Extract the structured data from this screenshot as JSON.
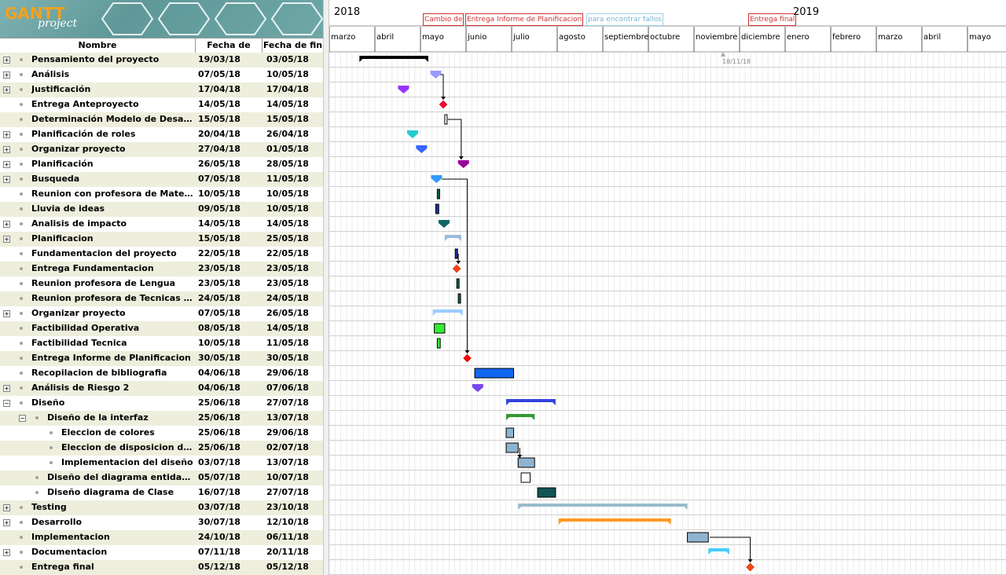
{
  "logo": {
    "brand": "GANTT",
    "sub": "project"
  },
  "columns": {
    "name": "Nombre",
    "start": "Fecha de inicio",
    "end": "Fecha de fin"
  },
  "timeline": {
    "year_left": "2018",
    "year_right": "2019",
    "months": [
      "marzo",
      "abril",
      "mayo",
      "junio",
      "julio",
      "agosto",
      "septiembre",
      "octubre",
      "noviembre",
      "diciembre",
      "enero",
      "febrero",
      "marzo",
      "abril",
      "mayo"
    ],
    "headlines": [
      {
        "text": "Cambio de",
        "style": "red"
      },
      {
        "text": "Entrega Informe de Planificacion",
        "style": "red"
      },
      {
        "text": "para encontrar fallos",
        "style": "blue"
      },
      {
        "text": "Entrega final",
        "style": "red"
      }
    ],
    "cursor_label": "18/11/18"
  },
  "tasks": [
    {
      "name": "Pensamiento del proyecto",
      "start": "19/03/18",
      "end": "03/05/18",
      "level": 0,
      "expand": "+"
    },
    {
      "name": "Análisis",
      "start": "07/05/18",
      "end": "10/05/18",
      "level": 0,
      "expand": "+"
    },
    {
      "name": "Justificación",
      "start": "17/04/18",
      "end": "17/04/18",
      "level": 0,
      "expand": "+"
    },
    {
      "name": "Entrega Anteproyecto",
      "start": "14/05/18",
      "end": "14/05/18",
      "level": 0,
      "expand": ""
    },
    {
      "name": "Determinación Modelo de Desarrollo",
      "start": "15/05/18",
      "end": "15/05/18",
      "level": 0,
      "expand": ""
    },
    {
      "name": "Planificación de roles",
      "start": "20/04/18",
      "end": "26/04/18",
      "level": 0,
      "expand": "+"
    },
    {
      "name": "Organizar proyecto",
      "start": "27/04/18",
      "end": "01/05/18",
      "level": 0,
      "expand": "+"
    },
    {
      "name": "Planificación",
      "start": "26/05/18",
      "end": "28/05/18",
      "level": 0,
      "expand": "+"
    },
    {
      "name": "Busqueda",
      "start": "07/05/18",
      "end": "11/05/18",
      "level": 0,
      "expand": "+"
    },
    {
      "name": "Reunion con profesora de Matemática",
      "start": "10/05/18",
      "end": "10/05/18",
      "level": 0,
      "expand": ""
    },
    {
      "name": "Lluvia de ideas",
      "start": "09/05/18",
      "end": "10/05/18",
      "level": 0,
      "expand": ""
    },
    {
      "name": "Analisis de impacto",
      "start": "14/05/18",
      "end": "14/05/18",
      "level": 0,
      "expand": "+"
    },
    {
      "name": "Planificacion",
      "start": "15/05/18",
      "end": "25/05/18",
      "level": 0,
      "expand": "+"
    },
    {
      "name": "Fundamentacion del proyecto",
      "start": "22/05/18",
      "end": "22/05/18",
      "level": 0,
      "expand": ""
    },
    {
      "name": "Entrega Fundamentacion",
      "start": "23/05/18",
      "end": "23/05/18",
      "level": 0,
      "expand": ""
    },
    {
      "name": "Reunion profesora de Lengua",
      "start": "23/05/18",
      "end": "23/05/18",
      "level": 0,
      "expand": ""
    },
    {
      "name": "Reunion profesora de Tecnicas de Est...",
      "start": "24/05/18",
      "end": "24/05/18",
      "level": 0,
      "expand": ""
    },
    {
      "name": "Organizar proyecto",
      "start": "07/05/18",
      "end": "26/05/18",
      "level": 0,
      "expand": "+"
    },
    {
      "name": "Factibilidad Operativa",
      "start": "08/05/18",
      "end": "14/05/18",
      "level": 0,
      "expand": ""
    },
    {
      "name": "Factibilidad Tecnica",
      "start": "10/05/18",
      "end": "11/05/18",
      "level": 0,
      "expand": ""
    },
    {
      "name": "Entrega Informe de Planificacion",
      "start": "30/05/18",
      "end": "30/05/18",
      "level": 0,
      "expand": ""
    },
    {
      "name": "Recopilacion de bibliografia",
      "start": "04/06/18",
      "end": "29/06/18",
      "level": 0,
      "expand": ""
    },
    {
      "name": "Análisis de Riesgo 2",
      "start": "04/06/18",
      "end": "07/06/18",
      "level": 0,
      "expand": "+"
    },
    {
      "name": "Diseño",
      "start": "25/06/18",
      "end": "27/07/18",
      "level": 0,
      "expand": "−"
    },
    {
      "name": "Diseño de la interfaz",
      "start": "25/06/18",
      "end": "13/07/18",
      "level": 1,
      "expand": "−"
    },
    {
      "name": "Eleccion de colores",
      "start": "25/06/18",
      "end": "29/06/18",
      "level": 2,
      "expand": ""
    },
    {
      "name": "Eleccion de disposicion de los ...",
      "start": "25/06/18",
      "end": "02/07/18",
      "level": 2,
      "expand": ""
    },
    {
      "name": "Implementacion del diseño",
      "start": "03/07/18",
      "end": "13/07/18",
      "level": 2,
      "expand": ""
    },
    {
      "name": "Diseño del diagrama entidad-relac...",
      "start": "05/07/18",
      "end": "10/07/18",
      "level": 1,
      "expand": ""
    },
    {
      "name": "Diseño diagrama de Clase",
      "start": "16/07/18",
      "end": "27/07/18",
      "level": 1,
      "expand": ""
    },
    {
      "name": "Testing",
      "start": "03/07/18",
      "end": "23/10/18",
      "level": 0,
      "expand": "+"
    },
    {
      "name": "Desarrollo",
      "start": "30/07/18",
      "end": "12/10/18",
      "level": 0,
      "expand": "+"
    },
    {
      "name": "Implementacion",
      "start": "24/10/18",
      "end": "06/11/18",
      "level": 0,
      "expand": ""
    },
    {
      "name": "Documentacion",
      "start": "07/11/18",
      "end": "20/11/18",
      "level": 0,
      "expand": "+"
    },
    {
      "name": "Entrega final",
      "start": "05/12/18",
      "end": "05/12/18",
      "level": 0,
      "expand": ""
    }
  ],
  "bars": [
    {
      "kind": "summary",
      "color": "#000000"
    },
    {
      "kind": "summary",
      "color": "#9999ff"
    },
    {
      "kind": "summary",
      "color": "#9933ff"
    },
    {
      "kind": "milestone",
      "color": "#ff0033"
    },
    {
      "kind": "task",
      "color": "#ffffff"
    },
    {
      "kind": "summary",
      "color": "#22cccc"
    },
    {
      "kind": "summary",
      "color": "#3366ff"
    },
    {
      "kind": "summary",
      "color": "#990099"
    },
    {
      "kind": "summary",
      "color": "#3399ff"
    },
    {
      "kind": "task",
      "color": "#116644"
    },
    {
      "kind": "task",
      "color": "#223399"
    },
    {
      "kind": "summary",
      "color": "#116666"
    },
    {
      "kind": "summary",
      "color": "#99bbdd"
    },
    {
      "kind": "task",
      "color": "#223399"
    },
    {
      "kind": "milestone",
      "color": "#ff4411"
    },
    {
      "kind": "task",
      "color": "#116644"
    },
    {
      "kind": "task",
      "color": "#116644"
    },
    {
      "kind": "summary",
      "color": "#99ccff"
    },
    {
      "kind": "task",
      "color": "#33ee33"
    },
    {
      "kind": "task",
      "color": "#33ee33"
    },
    {
      "kind": "milestone",
      "color": "#ff0000"
    },
    {
      "kind": "task",
      "color": "#1166ee"
    },
    {
      "kind": "summary",
      "color": "#7744ee"
    },
    {
      "kind": "summary",
      "color": "#3344dd"
    },
    {
      "kind": "summary",
      "color": "#339933"
    },
    {
      "kind": "task",
      "color": "#8fb4d0"
    },
    {
      "kind": "task",
      "color": "#8fb4d0"
    },
    {
      "kind": "task",
      "color": "#8fb4d0"
    },
    {
      "kind": "task",
      "color": "#ffffff"
    },
    {
      "kind": "task",
      "color": "#115555"
    },
    {
      "kind": "summary",
      "color": "#99bbcc"
    },
    {
      "kind": "summary",
      "color": "#ff9922"
    },
    {
      "kind": "task",
      "color": "#8fb4d0"
    },
    {
      "kind": "summary",
      "color": "#44ccff"
    },
    {
      "kind": "milestone",
      "color": "#ff4411"
    }
  ]
}
